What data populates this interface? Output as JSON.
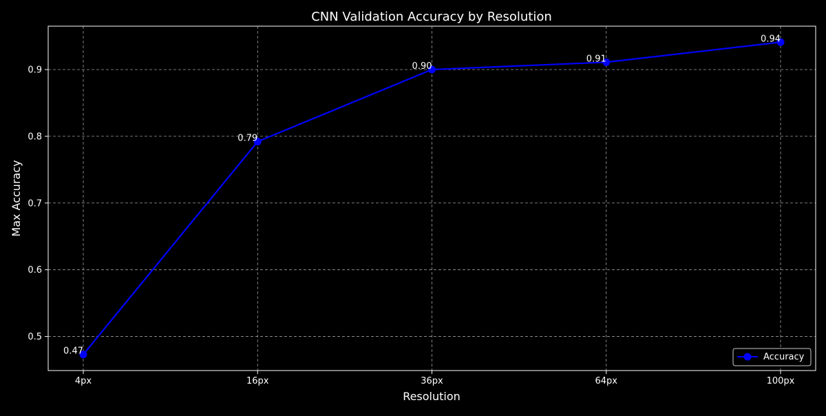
{
  "chart_data": {
    "type": "line",
    "title": "CNN Validation Accuracy by Resolution",
    "xlabel": "Resolution",
    "ylabel": "Max Accuracy",
    "categories": [
      "4px",
      "16px",
      "36px",
      "64px",
      "100px"
    ],
    "series": [
      {
        "name": "Accuracy",
        "values": [
          0.473,
          0.792,
          0.9,
          0.911,
          0.941
        ],
        "labels": [
          "0.47",
          "0.79",
          "0.90",
          "0.91",
          "0.94"
        ],
        "color": "#0000ff"
      }
    ],
    "yticks": [
      "0.5",
      "0.6",
      "0.7",
      "0.8",
      "0.9"
    ],
    "ylim": [
      0.449,
      0.965
    ],
    "grid": true,
    "legend_position": "lower-right",
    "colors": {
      "background": "#000000",
      "text": "#ffffff",
      "grid": "#a0a0a0",
      "line": "#0000ff"
    }
  }
}
